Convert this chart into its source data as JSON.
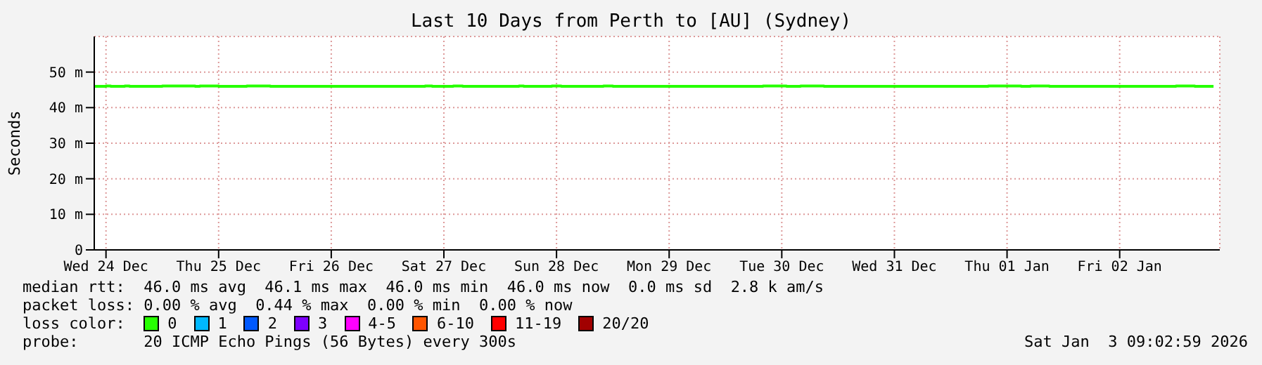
{
  "chart_data": {
    "type": "step",
    "title": "Last 10 Days from Perth to [AU] (Sydney)",
    "ylabel": "Seconds",
    "xlim": [
      "2025-12-24T09:30",
      "2026-01-03T09:20"
    ],
    "xticks": [
      {
        "value": "2025-12-24T12:00",
        "label": "Wed 24 Dec"
      },
      {
        "value": "2025-12-25T12:00",
        "label": "Thu 25 Dec"
      },
      {
        "value": "2025-12-26T12:00",
        "label": "Fri 26 Dec"
      },
      {
        "value": "2025-12-27T12:00",
        "label": "Sat 27 Dec"
      },
      {
        "value": "2025-12-28T12:00",
        "label": "Sun 28 Dec"
      },
      {
        "value": "2025-12-29T12:00",
        "label": "Mon 29 Dec"
      },
      {
        "value": "2025-12-30T12:00",
        "label": "Tue 30 Dec"
      },
      {
        "value": "2025-12-31T12:00",
        "label": "Wed 31 Dec"
      },
      {
        "value": "2026-01-01T12:00",
        "label": "Thu 01 Jan"
      },
      {
        "value": "2026-01-02T12:00",
        "label": "Fri 02 Jan"
      }
    ],
    "ylim": [
      0,
      60
    ],
    "yticks": [
      0,
      {
        "value": 10,
        "label": "10 m"
      },
      {
        "value": 20,
        "label": "20 m"
      },
      {
        "value": 30,
        "label": "30 m"
      },
      {
        "value": 40,
        "label": "40 m"
      },
      {
        "value": 50,
        "label": "50 m"
      }
    ],
    "grid": true,
    "legend": "bottom",
    "legend_title": "loss color:",
    "series": [
      {
        "name": "0",
        "color": "#26ff00",
        "x": [
          "2025-12-24T09:30",
          "2025-12-24T12:00",
          "2025-12-24T13:00",
          "2025-12-24T16:00",
          "2025-12-24T17:00",
          "2025-12-25T00:00",
          "2025-12-25T07:00",
          "2025-12-25T08:00",
          "2025-12-25T12:00",
          "2025-12-25T18:00",
          "2025-12-25T23:00",
          "2025-12-27T08:00",
          "2025-12-27T09:30",
          "2025-12-27T14:00",
          "2025-12-27T16:00",
          "2025-12-28T04:00",
          "2025-12-28T05:00",
          "2025-12-28T11:00",
          "2025-12-28T13:00",
          "2025-12-28T22:00",
          "2025-12-29T00:00",
          "2025-12-30T08:00",
          "2025-12-30T13:00",
          "2025-12-30T16:00",
          "2025-12-30T21:00",
          "2026-01-01T08:00",
          "2026-01-01T15:00",
          "2026-01-01T17:00",
          "2026-01-01T21:00",
          "2026-01-03T00:00",
          "2026-01-03T04:00",
          "2026-01-03T08:00"
        ],
        "values": [
          46,
          46.1,
          46,
          46.1,
          46,
          46.1,
          46,
          46.1,
          46,
          46.1,
          46,
          46.1,
          46,
          46.1,
          46,
          46.1,
          46,
          46.1,
          46,
          46.1,
          46,
          46.1,
          46,
          46.1,
          46,
          46.1,
          46,
          46.1,
          46,
          46.1,
          46,
          46
        ]
      },
      {
        "name": "1",
        "color": "#00b8ff"
      },
      {
        "name": "2",
        "color": "#0059ff"
      },
      {
        "name": "3",
        "color": "#7e00ff"
      },
      {
        "name": "4-5",
        "color": "#ff00ff"
      },
      {
        "name": "6-10",
        "color": "#ff5500"
      },
      {
        "name": "11-19",
        "color": "#ff0000"
      },
      {
        "name": "20/20",
        "color": "#a10000"
      }
    ],
    "annotations": [
      "median rtt:  46.0 ms avg  46.1 ms max  46.0 ms min  46.0 ms now  0.0 ms sd  2.8 k am/s",
      "packet loss: 0.00 % avg  0.44 % max  0.00 % min  0.00 % now",
      "probe:       20 ICMP Echo Pings (56 Bytes) every 300s",
      "Sat Jan  3 09:02:59 2026"
    ]
  }
}
